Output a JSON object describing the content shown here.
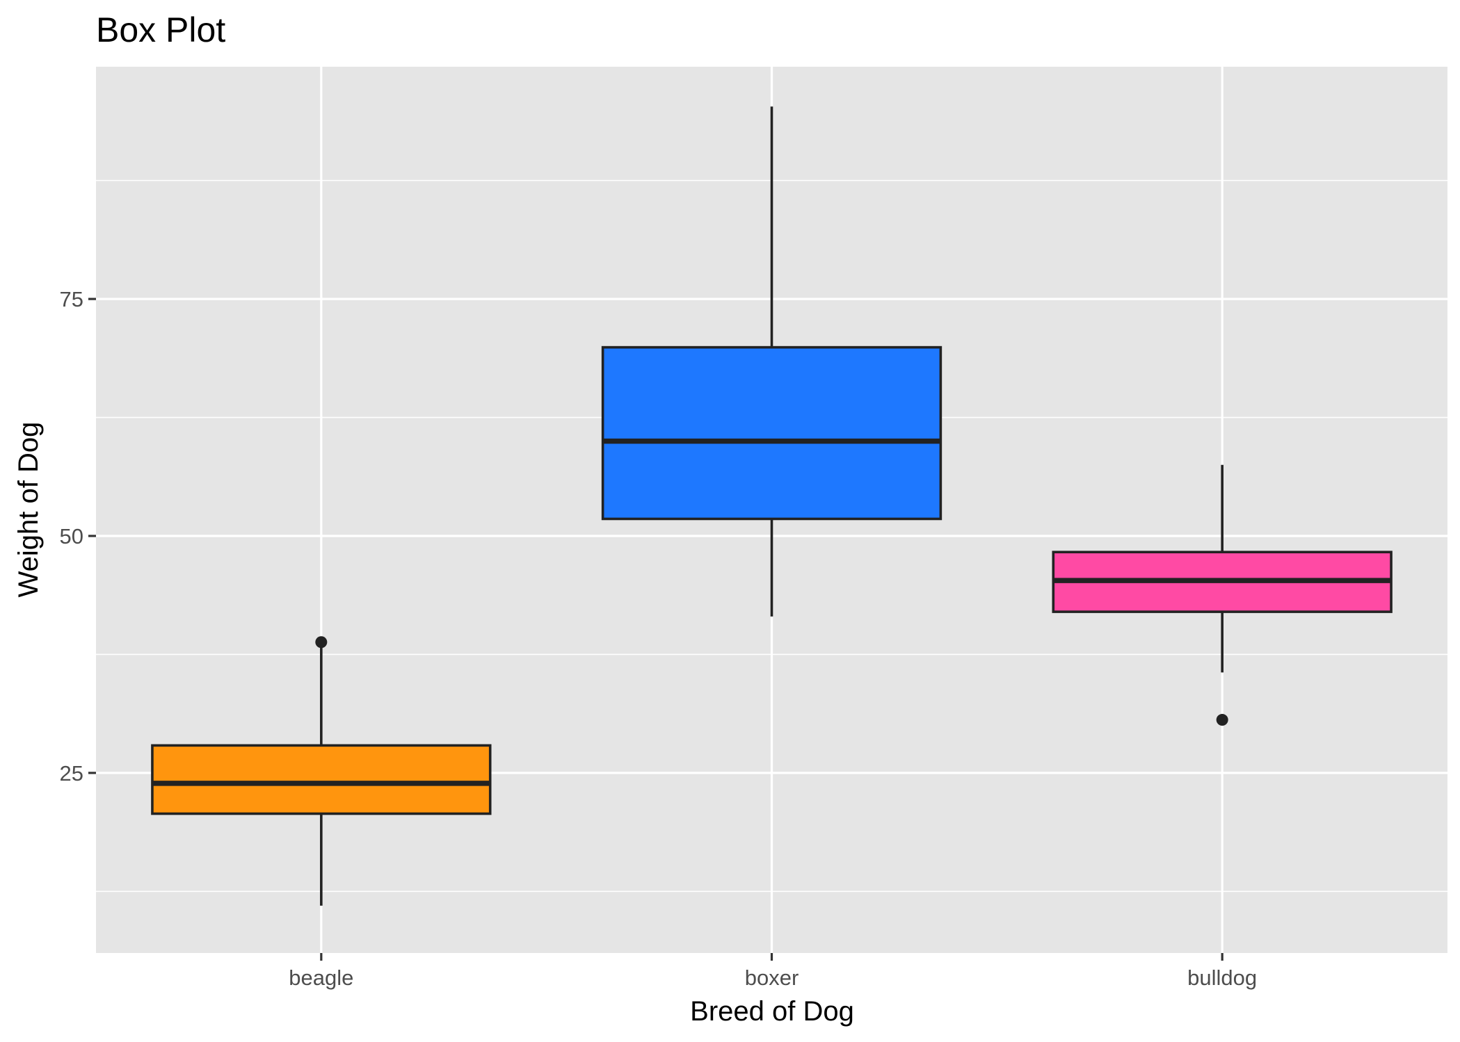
{
  "chart_data": {
    "type": "box",
    "title": "Box Plot",
    "xlabel": "Breed of Dog",
    "ylabel": "Weight of Dog",
    "ylim": [
      6,
      99.5
    ],
    "yticks": [
      25,
      50,
      75
    ],
    "ytick_labels": [
      "25",
      "50",
      "75"
    ],
    "grid": true,
    "legend": "none",
    "categories": [
      "beagle",
      "boxer",
      "bulldog"
    ],
    "series": [
      {
        "category": "beagle",
        "color": "#FF950E",
        "whisker_low": 11,
        "q1": 20.7,
        "median": 23.9,
        "q3": 27.9,
        "whisker_high": 38.8,
        "outliers": [
          38.8
        ]
      },
      {
        "category": "boxer",
        "color": "#1E78FF",
        "whisker_low": 41.5,
        "q1": 51.8,
        "median": 60,
        "q3": 69.9,
        "whisker_high": 95.3,
        "outliers": []
      },
      {
        "category": "bulldog",
        "color": "#FF4AA4",
        "whisker_low": 35.6,
        "q1": 42,
        "median": 45.3,
        "q3": 48.3,
        "whisker_high": 57.5,
        "outliers": [
          30.6
        ]
      }
    ]
  },
  "colors": {
    "panel_background": "#E5E5E5",
    "grid_line": "#FFFFFF",
    "box_outline": "#222222"
  }
}
